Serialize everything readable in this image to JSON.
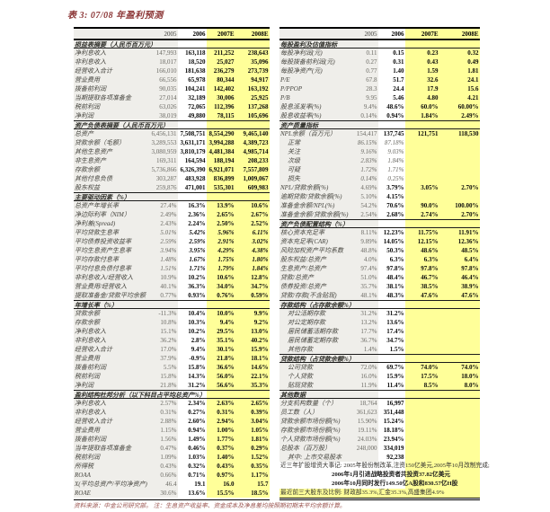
{
  "title": "表 3: 07/08 年盈利预测",
  "columns": [
    "2005",
    "2006",
    "2007E",
    "2008E"
  ],
  "colors": {
    "forecast_highlight": "#FFFF99",
    "column_2005_band": "#EFEEEA",
    "title_color": "#8C3636",
    "footnote_color": "#9B5550"
  },
  "left_table": {
    "rows": [
      {
        "type": "section",
        "label": "损益表摘要（人民币百万元）"
      },
      {
        "label": "净利息收入",
        "values": [
          "147,993",
          "163,118",
          "211,252",
          "238,643"
        ]
      },
      {
        "label": "非利息收入",
        "values": [
          "18,017",
          "18,520",
          "25,027",
          "35,096"
        ]
      },
      {
        "label": "经营收入合计",
        "values": [
          "166,010",
          "181,638",
          "236,279",
          "273,739"
        ]
      },
      {
        "label": "营业费用",
        "values": [
          "66,556",
          "65,978",
          "80,344",
          "94,917"
        ]
      },
      {
        "label": "拨备前利润",
        "values": [
          "90,035",
          "104,241",
          "142,402",
          "163,192"
        ]
      },
      {
        "label": "当期提取各项准备金",
        "values": [
          "27,014",
          "32,189",
          "30,006",
          "25,925"
        ]
      },
      {
        "label": "税前利润",
        "values": [
          "63,026",
          "72,065",
          "112,396",
          "137,268"
        ]
      },
      {
        "label": "净利润",
        "values": [
          "38,019",
          "49,880",
          "78,115",
          "105,696"
        ]
      },
      {
        "type": "section",
        "label": "资产负债表摘要（人民币百万元）"
      },
      {
        "label": "总资产",
        "values": [
          "6,456,131",
          "7,508,751",
          "8,554,290",
          "9,465,140"
        ]
      },
      {
        "label": "贷款余额（毛额）",
        "values": [
          "3,289,553",
          "3,631,171",
          "3,994,288",
          "4,389,723"
        ]
      },
      {
        "label": "其他生息资产",
        "values": [
          "3,080,959",
          "3,810,179",
          "4,481,384",
          "4,985,714"
        ]
      },
      {
        "label": "非生息资产",
        "values": [
          "169,311",
          "164,594",
          "188,194",
          "208,233"
        ]
      },
      {
        "label": "存款余额",
        "values": [
          "5,736,866",
          "6,326,390",
          "6,921,071",
          "7,557,809"
        ]
      },
      {
        "label": "其他付息负债",
        "values": [
          "303,287",
          "483,928",
          "836,899",
          "1,009,067"
        ]
      },
      {
        "label": "股东权益",
        "values": [
          "259,876",
          "471,001",
          "535,301",
          "609,983"
        ]
      },
      {
        "type": "section",
        "label": "主要驱动因素（%）"
      },
      {
        "label": "总资产年增长率",
        "values": [
          "27.4%",
          "16.3%",
          "13.9%",
          "10.6%"
        ]
      },
      {
        "label": "净边际利率（NIM）",
        "values": [
          "2.49%",
          "2.36%",
          "2.65%",
          "2.67%"
        ]
      },
      {
        "label": "净利差(Spread)",
        "values": [
          "2.43%",
          "2.24%",
          "2.50%",
          "2.52%"
        ]
      },
      {
        "type": "italic",
        "label": "平均贷款生息率",
        "values": [
          "5.01%",
          "5.42%",
          "5.96%",
          "6.11%"
        ]
      },
      {
        "type": "italic",
        "label": "平均债券投资收益率",
        "values": [
          "2.59%",
          "2.59%",
          "2.91%",
          "3.02%"
        ]
      },
      {
        "type": "italic",
        "label": "平均生息资产生息率",
        "values": [
          "3.94%",
          "3.95%",
          "4.29%",
          "4.38%"
        ]
      },
      {
        "type": "italic",
        "label": "平均存款付息率",
        "values": [
          "1.48%",
          "1.67%",
          "1.75%",
          "1.80%"
        ]
      },
      {
        "type": "italic",
        "label": "平均付息负债付息率",
        "values": [
          "1.51%",
          "1.71%",
          "1.79%",
          "1.84%"
        ]
      },
      {
        "label": "非利息收入/经营收入",
        "values": [
          "10.9%",
          "10.2%",
          "10.6%",
          "12.8%"
        ]
      },
      {
        "label": "营业费用/经营收入",
        "values": [
          "40.1%",
          "36.3%",
          "34.0%",
          "34.7%"
        ]
      },
      {
        "label": "提取准备金/贷款平均余额",
        "values": [
          "0.77%",
          "0.93%",
          "0.76%",
          "0.59%"
        ]
      },
      {
        "type": "section",
        "label": "年增长率（%）"
      },
      {
        "label": "贷款余额",
        "values": [
          "-11.3%",
          "10.4%",
          "10.0%",
          "9.9%"
        ]
      },
      {
        "label": "存款余额",
        "values": [
          "10.8%",
          "10.3%",
          "9.4%",
          "9.2%"
        ]
      },
      {
        "label": "净利息收入",
        "values": [
          "15.1%",
          "10.2%",
          "29.5%",
          "13.0%"
        ]
      },
      {
        "label": "非利息收入",
        "values": [
          "36.2%",
          "2.8%",
          "35.1%",
          "40.2%"
        ]
      },
      {
        "label": "经营收入合计",
        "values": [
          "17.0%",
          "9.4%",
          "30.1%",
          "15.9%"
        ]
      },
      {
        "label": "营业费用",
        "values": [
          "37.9%",
          "-0.9%",
          "21.8%",
          "18.1%"
        ]
      },
      {
        "label": "拨备前利润",
        "values": [
          "5.5%",
          "15.8%",
          "36.6%",
          "14.6%"
        ]
      },
      {
        "label": "税前利润",
        "values": [
          "15.8%",
          "14.3%",
          "56.0%",
          "22.1%"
        ]
      },
      {
        "label": "净利润",
        "values": [
          "21.8%",
          "31.2%",
          "56.6%",
          "35.3%"
        ]
      },
      {
        "type": "section",
        "label": "盈利结构杜邦分析（以下科目占平均总资产%）"
      },
      {
        "label": "净利息收入",
        "values": [
          "2.57%",
          "2.34%",
          "2.63%",
          "2.65%"
        ]
      },
      {
        "label": "非利息收入",
        "values": [
          "0.31%",
          "0.27%",
          "0.31%",
          "0.39%"
        ]
      },
      {
        "label": "经营收入合计",
        "values": [
          "2.88%",
          "2.60%",
          "2.94%",
          "3.04%"
        ]
      },
      {
        "label": "营业费用",
        "values": [
          "1.15%",
          "0.94%",
          "1.00%",
          "1.05%"
        ]
      },
      {
        "label": "拨备前利润",
        "values": [
          "1.56%",
          "1.49%",
          "1.77%",
          "1.81%"
        ]
      },
      {
        "label": "当年提取各项准备金",
        "values": [
          "0.47%",
          "0.46%",
          "0.37%",
          "0.29%"
        ]
      },
      {
        "label": "税前利润",
        "values": [
          "1.09%",
          "1.03%",
          "1.40%",
          "1.52%"
        ]
      },
      {
        "label": "所得税",
        "values": [
          "0.43%",
          "0.32%",
          "0.43%",
          "0.35%"
        ]
      },
      {
        "label": "ROAA",
        "values": [
          "0.66%",
          "0.71%",
          "0.97%",
          "1.17%"
        ]
      },
      {
        "label": "X(平均总资产/平均净资产)",
        "values": [
          "46.4",
          "19.1",
          "16.0",
          "15.7"
        ]
      },
      {
        "label": "ROAE",
        "values": [
          "30.6%",
          "13.6%",
          "15.5%",
          "18.5%"
        ]
      }
    ]
  },
  "right_table": {
    "rows": [
      {
        "type": "section",
        "label": "每股盈利及估值指标"
      },
      {
        "label": "每股净利润(元)",
        "values": [
          "0.11",
          "0.15",
          "0.23",
          "0.32"
        ]
      },
      {
        "label": "每股拨备前利润(元)",
        "values": [
          "0.27",
          "0.31",
          "0.43",
          "0.49"
        ]
      },
      {
        "label": "每股净资产(元)",
        "values": [
          "0.77",
          "1.40",
          "1.59",
          "1.81"
        ]
      },
      {
        "label": "P/E",
        "values": [
          "67.8",
          "51.7",
          "32.6",
          "24.1"
        ]
      },
      {
        "label": "P/PPOP",
        "values": [
          "28.3",
          "24.4",
          "17.9",
          "15.6"
        ]
      },
      {
        "label": "P/B",
        "values": [
          "9.95",
          "5.46",
          "4.80",
          "4.21"
        ]
      },
      {
        "label": "股息派发率(%)",
        "values": [
          "9.4%",
          "48.6%",
          "60.0%",
          "60.00%"
        ]
      },
      {
        "label": "股息收益率(%)",
        "values": [
          "0.14%",
          "0.94%",
          "1.84%",
          "2.49%"
        ]
      },
      {
        "type": "section",
        "label": "资产质量指标"
      },
      {
        "label": "NPL余额（百万元）",
        "values": [
          "154,417",
          "137,745",
          "121,751",
          "118,530"
        ]
      },
      {
        "type": "detail",
        "indent": true,
        "label": "正常",
        "values": [
          "86.15%",
          "87.18%",
          "",
          ""
        ]
      },
      {
        "type": "detail",
        "indent": true,
        "label": "关注",
        "values": [
          "9.16%",
          "9.03%",
          "",
          ""
        ]
      },
      {
        "type": "detail",
        "indent": true,
        "label": "次级",
        "values": [
          "2.83%",
          "1.84%",
          "",
          ""
        ]
      },
      {
        "type": "detail",
        "indent": true,
        "label": "可疑",
        "values": [
          "1.72%",
          "1.71%",
          "",
          ""
        ]
      },
      {
        "type": "detail",
        "indent": true,
        "label": "损失",
        "values": [
          "0.14%",
          "0.25%",
          "",
          ""
        ]
      },
      {
        "label": "NPL/贷款余额(%)",
        "values": [
          "4.69%",
          "3.79%",
          "3.05%",
          "2.70%"
        ]
      },
      {
        "label": "逾期贷款/贷款余额(%)",
        "values": [
          "5.10%",
          "4.15%",
          "",
          ""
        ]
      },
      {
        "label": "准备金余额/NPL(%)",
        "values": [
          "54.2%",
          "70.6%",
          "90.0%",
          "100.00%"
        ]
      },
      {
        "label": "准备金余额/贷款余额(%)",
        "values": [
          "2.54%",
          "2.68%",
          "2.74%",
          "2.70%"
        ]
      },
      {
        "type": "section",
        "label": "资产负债配置结构（%）"
      },
      {
        "label": "核心资本充足率",
        "values": [
          "8.11%",
          "12.23%",
          "11.75%",
          "11.91%"
        ]
      },
      {
        "label": "资本充足率(CAR)",
        "values": [
          "9.89%",
          "14.05%",
          "12.15%",
          "12.36%"
        ]
      },
      {
        "label": "风险加权资产平均系数",
        "values": [
          "48.8%",
          "50.3%",
          "48.6%",
          "48.5%"
        ]
      },
      {
        "label": "股东权益/总资产",
        "values": [
          "4.0%",
          "6.3%",
          "6.3%",
          "6.4%"
        ]
      },
      {
        "label": "生息资产/总资产",
        "values": [
          "97.4%",
          "97.8%",
          "97.8%",
          "97.8%"
        ]
      },
      {
        "label": "贷款/总资产",
        "values": [
          "51.0%",
          "48.4%",
          "46.7%",
          "46.4%"
        ]
      },
      {
        "label": "债券投资/总资产",
        "values": [
          "35.7%",
          "38.1%",
          "38.5%",
          "38.9%"
        ]
      },
      {
        "label": "贷款/存款(不含贴现)",
        "values": [
          "48.1%",
          "48.3%",
          "47.6%",
          "47.6%"
        ]
      },
      {
        "type": "section",
        "label": "存款结构（占存款余额%）"
      },
      {
        "indent": true,
        "label": "对公活期存款",
        "values": [
          "31.2%",
          "31.2%",
          "",
          ""
        ]
      },
      {
        "indent": true,
        "label": "对公定期存款",
        "values": [
          "13.2%",
          "13.6%",
          "",
          ""
        ]
      },
      {
        "indent": true,
        "label": "居民储蓄活期存款",
        "values": [
          "17.7%",
          "17.4%",
          "",
          ""
        ]
      },
      {
        "indent": true,
        "label": "居民储蓄定期存款",
        "values": [
          "36.7%",
          "34.7%",
          "",
          ""
        ]
      },
      {
        "indent": true,
        "label": "其他存款",
        "values": [
          "1.4%",
          "1.5%",
          "",
          ""
        ]
      },
      {
        "type": "section",
        "label": "贷款结构（占贷款余额%）"
      },
      {
        "indent": true,
        "label": "公司贷款",
        "values": [
          "72.0%",
          "69.7%",
          "74.0%",
          "74.0%"
        ]
      },
      {
        "indent": true,
        "label": "个人贷款",
        "values": [
          "16.0%",
          "15.9%",
          "17.5%",
          "18.0%"
        ]
      },
      {
        "indent": true,
        "label": "贴现贷款",
        "values": [
          "11.9%",
          "11.4%",
          "8.5%",
          "8.0%"
        ]
      },
      {
        "type": "section",
        "label": "其他数据"
      },
      {
        "label": "分支机构数量（个）",
        "values": [
          "18,764",
          "16,997",
          "",
          ""
        ]
      },
      {
        "label": "员工数（人）",
        "values": [
          "361,623",
          "351,448",
          "",
          ""
        ]
      },
      {
        "label": "贷款余额市场份额(%)",
        "values": [
          "15.90%",
          "15.24%",
          "",
          ""
        ]
      },
      {
        "label": "存款余额市场份额(%)",
        "values": [
          "19.11%",
          "18.18%",
          "",
          ""
        ]
      },
      {
        "label": "个人贷款市场份额(%)",
        "values": [
          "24.03%",
          "23.94%",
          "",
          ""
        ]
      },
      {
        "label": "总股本（百万股）",
        "values": [
          "248,000",
          "334,019",
          "",
          ""
        ]
      },
      {
        "indent": true,
        "label": "其中: 上市交易股本",
        "values": [
          "",
          "92,238",
          "",
          ""
        ]
      },
      {
        "type": "note",
        "plain": true,
        "label": "近三年扩股增资大事记: 2005年股份制改革,注资150亿美元,2005年10月改制完成;"
      },
      {
        "type": "note",
        "indent": true,
        "label": "2006年1月引进战略投资者共投资37.82亿美元"
      },
      {
        "type": "note",
        "indent": true,
        "label": "2006年10月同时发行149.50亿A股和830.57亿H股"
      },
      {
        "type": "note",
        "full": true,
        "plain": true,
        "label": "最近前三大股东及比例: 财政部35.3%,汇金35.3%,高盛集团4.9%"
      }
    ]
  },
  "footer": {
    "source": "资料来源：中金公司研究部。",
    "note": "注：生息资产收益率、资金成本及净息差均按照期初期末平均余额计算。"
  }
}
